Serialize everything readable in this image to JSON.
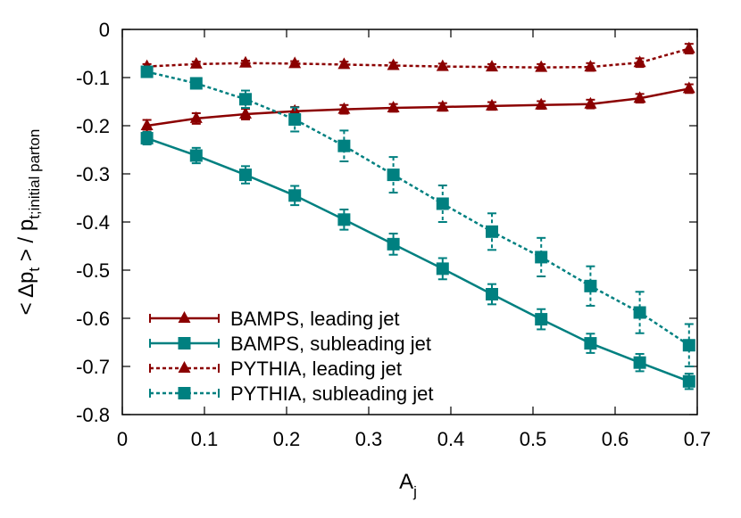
{
  "chart_data": {
    "type": "line",
    "xlabel": {
      "main": "A",
      "sub": "j"
    },
    "ylabel": {
      "pre": "< Δp",
      "sub1": "t",
      "mid": " > / p",
      "sub2": "t;initial parton"
    },
    "xlim": [
      0,
      0.7
    ],
    "ylim": [
      -0.8,
      0
    ],
    "x_ticks": [
      "0",
      "0.1",
      "0.2",
      "0.3",
      "0.4",
      "0.5",
      "0.6",
      "0.7"
    ],
    "y_ticks": [
      "0",
      "-0.1",
      "-0.2",
      "-0.3",
      "-0.4",
      "-0.5",
      "-0.6",
      "-0.7",
      "-0.8"
    ],
    "grid": false,
    "legend_position": "bottom-left",
    "x": [
      0.03,
      0.09,
      0.15,
      0.21,
      0.27,
      0.33,
      0.39,
      0.45,
      0.51,
      0.57,
      0.63,
      0.69
    ],
    "series": [
      {
        "name": "BAMPS, leading jet",
        "color": "#8b0000",
        "dash": "solid",
        "marker": "triangle",
        "values": [
          -0.2,
          -0.185,
          -0.176,
          -0.17,
          -0.166,
          -0.163,
          -0.161,
          -0.159,
          -0.157,
          -0.155,
          -0.143,
          -0.123
        ],
        "errors": [
          0.012,
          0.011,
          0.011,
          0.009,
          0.009,
          0.008,
          0.008,
          0.008,
          0.008,
          0.009,
          0.009,
          0.009
        ]
      },
      {
        "name": "BAMPS, subleading jet",
        "color": "#008080",
        "dash": "solid",
        "marker": "square",
        "values": [
          -0.226,
          -0.262,
          -0.302,
          -0.345,
          -0.395,
          -0.446,
          -0.497,
          -0.55,
          -0.602,
          -0.652,
          -0.692,
          -0.731
        ],
        "errors": [
          0.013,
          0.016,
          0.018,
          0.02,
          0.021,
          0.022,
          0.022,
          0.021,
          0.021,
          0.02,
          0.018,
          0.016
        ]
      },
      {
        "name": "PYTHIA, leading jet",
        "color": "#8b0000",
        "dash": "dashed",
        "marker": "triangle",
        "values": [
          -0.077,
          -0.072,
          -0.07,
          -0.071,
          -0.073,
          -0.075,
          -0.077,
          -0.078,
          -0.079,
          -0.078,
          -0.069,
          -0.04
        ],
        "errors": [
          0.005,
          0.005,
          0.005,
          0.005,
          0.006,
          0.006,
          0.006,
          0.006,
          0.007,
          0.008,
          0.009,
          0.01
        ]
      },
      {
        "name": "PYTHIA, subleading jet",
        "color": "#008080",
        "dash": "dashed",
        "marker": "square",
        "values": [
          -0.088,
          -0.112,
          -0.145,
          -0.187,
          -0.242,
          -0.302,
          -0.362,
          -0.42,
          -0.473,
          -0.533,
          -0.588,
          -0.656
        ],
        "errors": [
          0.007,
          0.011,
          0.018,
          0.025,
          0.032,
          0.037,
          0.038,
          0.038,
          0.04,
          0.041,
          0.043,
          0.044
        ]
      }
    ]
  }
}
